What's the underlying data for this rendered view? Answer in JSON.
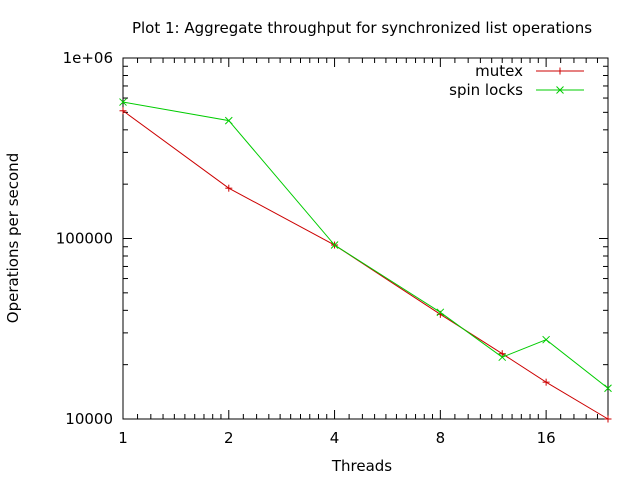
{
  "chart_data": {
    "type": "line",
    "title": "Plot 1: Aggregate throughput for synchronized list operations",
    "xlabel": "Threads",
    "ylabel": "Operations per second",
    "x_scale": "log2",
    "y_scale": "log10",
    "xlim": [
      1,
      24
    ],
    "ylim": [
      10000,
      1000000
    ],
    "x_ticks": [
      1,
      2,
      4,
      8,
      16
    ],
    "x_tick_labels": [
      "1",
      "2",
      "4",
      "8",
      "16"
    ],
    "y_ticks": [
      10000,
      100000,
      1000000
    ],
    "y_tick_labels": [
      "10000",
      "100000",
      "1e+06"
    ],
    "grid": false,
    "legend_position": "top-right",
    "series": [
      {
        "name": "mutex",
        "color": "#cc0000",
        "marker": "plus",
        "x": [
          1,
          2,
          4,
          8,
          12,
          16,
          24
        ],
        "y": [
          510000,
          190000,
          92000,
          38000,
          23000,
          16000,
          10000
        ]
      },
      {
        "name": "spin locks",
        "color": "#00cc00",
        "marker": "cross",
        "x": [
          1,
          2,
          4,
          8,
          12,
          16,
          24
        ],
        "y": [
          570000,
          450000,
          92000,
          39000,
          22000,
          27500,
          14800
        ]
      }
    ]
  }
}
